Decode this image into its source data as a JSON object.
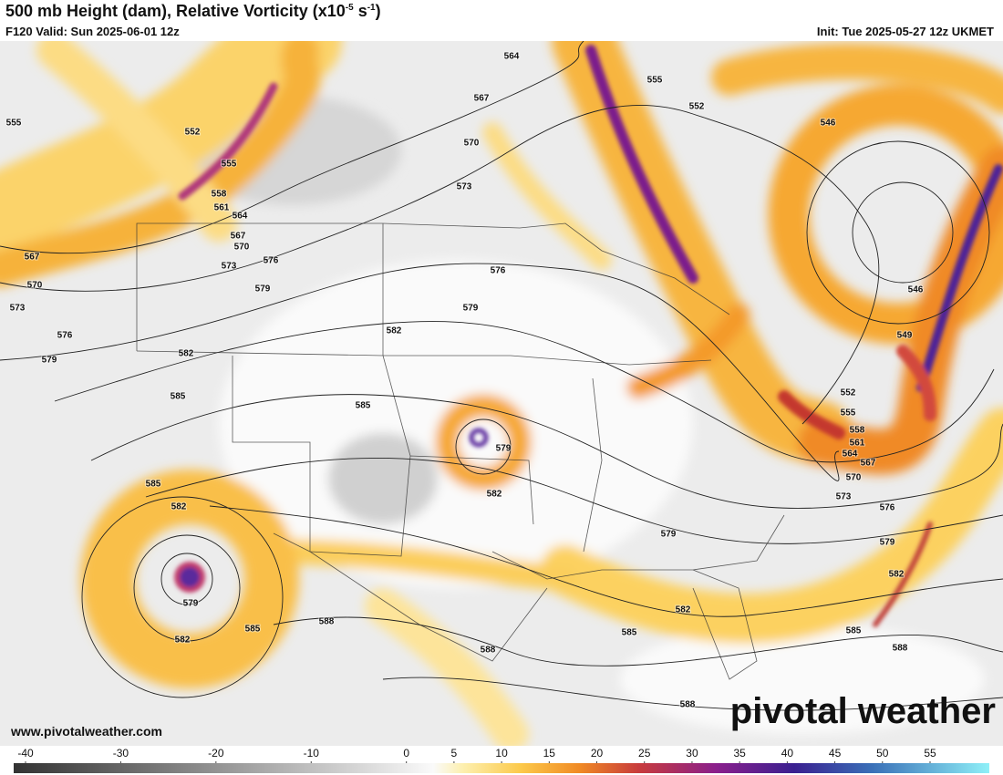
{
  "header": {
    "title": "500 mb Height (dam), Relative Vorticity (x10",
    "title_exponent": "-5",
    "title_unit": " s",
    "title_unit_exponent": "-1",
    "title_close": ")",
    "valid": "F120 Valid: Sun 2025-06-01 12z",
    "init": "Init: Tue 2025-05-27 12z UKMET"
  },
  "contour_labels": [
    555,
    552,
    555,
    558,
    561,
    564,
    567,
    570,
    573,
    576,
    579,
    567,
    570,
    573,
    576,
    579,
    582,
    585,
    582,
    579,
    576,
    573,
    570,
    567,
    564,
    555,
    552,
    546,
    546,
    549,
    552,
    555,
    558,
    561,
    564,
    567,
    570,
    573,
    576,
    579,
    582,
    585,
    588,
    588,
    585,
    582,
    579,
    585,
    579,
    582,
    585,
    582,
    579,
    582,
    585,
    588,
    588
  ],
  "colorbar": {
    "ticks": [
      -40,
      -30,
      -20,
      -10,
      0,
      5,
      10,
      15,
      20,
      25,
      30,
      35,
      40,
      45,
      50,
      55
    ]
  },
  "watermark": "pivotal weather",
  "url": "www.pivotalweather.com"
}
